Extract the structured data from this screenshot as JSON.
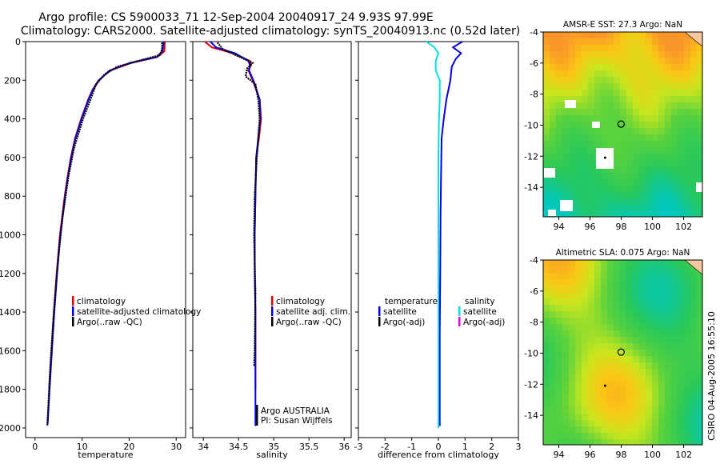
{
  "header": {
    "line1": "Argo profile: CS 5900033_71 12-Sep-2004 20040917_24 9.93S 97.99E",
    "line2": "Climatology: CARS2000. Satellite-adjusted climatology: synTS_20040913.nc (0.52d later)"
  },
  "side_stamp": "CSIRO 04-Aug-2005 16:55:10",
  "chart_data": [
    {
      "type": "line",
      "id": "temperature",
      "xlabel": "temperature",
      "ylabel": "",
      "xlim": [
        -2,
        32
      ],
      "ylim": [
        2050,
        0
      ],
      "xticks": [
        "0",
        "10",
        "20",
        "30"
      ],
      "xtick_values": [
        0,
        10,
        20,
        30
      ],
      "yticks": [
        "0",
        "200",
        "400",
        "600",
        "800",
        "1000",
        "1200",
        "1400",
        "1600",
        "1800",
        "2000"
      ],
      "ytick_values": [
        0,
        200,
        400,
        600,
        800,
        1000,
        1200,
        1400,
        1600,
        1800,
        2000
      ],
      "legend": [
        {
          "label": "climatology",
          "color": "#e00000"
        },
        {
          "label": "satellite-adjusted climatology",
          "color": "#0000e0"
        },
        {
          "label": "Argo(..raw -QC)",
          "color": "#000000"
        }
      ],
      "series": [
        {
          "name": "climatology",
          "color": "#e00000",
          "depth": [
            0,
            50,
            80,
            110,
            150,
            200,
            250,
            300,
            400,
            500,
            600,
            700,
            800,
            1000,
            1200,
            1400,
            1600,
            1800
          ],
          "values": [
            27.6,
            27.5,
            26.0,
            20.5,
            16.0,
            13.5,
            12.2,
            11.3,
            9.8,
            8.5,
            7.6,
            6.9,
            6.3,
            5.3,
            4.6,
            4.0,
            3.5,
            3.0
          ]
        },
        {
          "name": "satellite-adjusted climatology",
          "color": "#0000e0",
          "depth": [
            0,
            50,
            80,
            110,
            150,
            200,
            250,
            300,
            400,
            500,
            600,
            700,
            800,
            1000,
            1200,
            1400,
            1600,
            1800,
            1980
          ],
          "values": [
            27.3,
            27.1,
            25.8,
            20.2,
            15.8,
            13.6,
            12.3,
            11.4,
            9.9,
            8.6,
            7.7,
            7.0,
            6.4,
            5.4,
            4.7,
            4.1,
            3.6,
            3.1,
            2.7
          ]
        },
        {
          "name": "Argo(..raw -QC)",
          "color": "#000000",
          "depth": [
            5,
            40,
            70,
            100,
            130,
            170,
            220,
            300,
            400,
            550,
            700,
            900,
            1100,
            1400,
            1700,
            1990
          ],
          "values": [
            27.0,
            27.0,
            26.5,
            22.0,
            17.5,
            14.8,
            13.0,
            11.8,
            10.2,
            8.3,
            7.1,
            5.9,
            5.0,
            4.0,
            3.2,
            2.6
          ]
        }
      ]
    },
    {
      "type": "line",
      "id": "salinity",
      "xlabel": "salinity",
      "xlim": [
        33.85,
        36.1
      ],
      "ylim": [
        2050,
        0
      ],
      "xticks": [
        "34",
        "34.5",
        "35",
        "35.5",
        "36"
      ],
      "xtick_values": [
        34,
        34.5,
        35,
        35.5,
        36
      ],
      "legend": [
        {
          "label": "climatology",
          "color": "#e00000"
        },
        {
          "label": "satellite adj. clim.",
          "color": "#0000e0"
        },
        {
          "label": "Argo(..raw -QC)",
          "color": "#000000"
        }
      ],
      "annotations": [
        "Argo AUSTRALIA",
        "PI: Susan Wijffels"
      ],
      "series": [
        {
          "name": "climatology",
          "color": "#e00000",
          "depth": [
            0,
            30,
            60,
            100,
            120,
            150,
            200,
            300,
            400,
            500,
            600,
            800,
            1000,
            1200,
            1400,
            1600,
            1800
          ],
          "values": [
            34.02,
            34.12,
            34.42,
            34.66,
            34.68,
            34.64,
            34.7,
            34.8,
            34.82,
            34.79,
            34.75,
            34.74,
            34.73,
            34.73,
            34.74,
            34.74,
            34.74
          ]
        },
        {
          "name": "satellite adj. clim.",
          "color": "#0000e0",
          "depth": [
            0,
            30,
            60,
            100,
            120,
            150,
            200,
            300,
            400,
            500,
            600,
            800,
            1000,
            1200,
            1400,
            1600,
            1800,
            1990
          ],
          "values": [
            34.1,
            34.18,
            34.45,
            34.64,
            34.66,
            34.65,
            34.71,
            34.8,
            34.81,
            34.78,
            34.75,
            34.74,
            34.73,
            34.73,
            34.74,
            34.74,
            34.74,
            34.74
          ]
        },
        {
          "name": "Argo(..raw -QC)",
          "color": "#000000",
          "depth": [
            5,
            40,
            80,
            110,
            140,
            180,
            220,
            300,
            400,
            600,
            800,
            1000,
            1300,
            1600,
            1680
          ],
          "values": [
            34.2,
            34.28,
            34.52,
            34.7,
            34.62,
            34.6,
            34.74,
            34.78,
            34.8,
            34.76,
            34.73,
            34.72,
            34.74,
            34.73,
            34.72
          ]
        }
      ]
    },
    {
      "type": "line",
      "id": "difference",
      "xlabel": "difference from climatology",
      "xlim": [
        -3,
        3
      ],
      "ylim": [
        2050,
        0
      ],
      "xticks": [
        "-3",
        "-2",
        "-1",
        "0",
        "1",
        "2",
        "3"
      ],
      "xtick_values": [
        -3,
        -2,
        -1,
        0,
        1,
        2,
        3
      ],
      "legend_left_title": "temperature",
      "legend_right_title": "salinity",
      "legend_left": [
        {
          "label": "satellite",
          "color": "#0000e0"
        },
        {
          "label": "Argo(-adj)",
          "color": "#000000"
        }
      ],
      "legend_right": [
        {
          "label": "satellite",
          "color": "#00e0e0"
        },
        {
          "label": "Argo(-adj)",
          "color": "#e000e0"
        }
      ],
      "series": [
        {
          "name": "temperature satellite",
          "color": "#0000e0",
          "depth": [
            0,
            30,
            60,
            90,
            130,
            200,
            300,
            400,
            500,
            700,
            900,
            1200,
            1500,
            1800,
            1990
          ],
          "values": [
            0.9,
            0.55,
            0.85,
            0.65,
            0.5,
            0.45,
            0.3,
            0.2,
            0.12,
            0.1,
            0.08,
            0.07,
            0.05,
            0.05,
            0.05
          ]
        },
        {
          "name": "salinity satellite",
          "color": "#00e0e0",
          "depth": [
            0,
            30,
            60,
            100,
            150,
            200,
            300,
            400,
            600,
            800,
            1000,
            1500,
            2000
          ],
          "values": [
            -0.45,
            -0.15,
            0.0,
            -0.1,
            -0.1,
            0.05,
            0.05,
            0.02,
            0.0,
            0.0,
            0.0,
            0.0,
            0.0
          ]
        }
      ]
    },
    {
      "type": "heatmap",
      "id": "sst_map",
      "title": "AMSR-E SST: 27.3 Argo: NaN",
      "xlim": [
        93,
        103.2
      ],
      "ylim": [
        -15.9,
        -4
      ],
      "xticks": [
        "94",
        "96",
        "98",
        "100",
        "102"
      ],
      "xtick_values": [
        94,
        96,
        98,
        100,
        102
      ],
      "yticks": [
        "-4",
        "-6",
        "-8",
        "-10",
        "-12",
        "-14"
      ],
      "ytick_values": [
        -4,
        -6,
        -8,
        -10,
        -12,
        -14
      ],
      "float_position": {
        "lon": 97.99,
        "lat": -9.93
      }
    },
    {
      "type": "heatmap",
      "id": "sla_map",
      "title": "Altimetric SLA: 0.075 Argo: NaN",
      "xlim": [
        93,
        103.2
      ],
      "ylim": [
        -15.9,
        -4
      ],
      "xticks": [
        "94",
        "96",
        "98",
        "100",
        "102"
      ],
      "xtick_values": [
        94,
        96,
        98,
        100,
        102
      ],
      "yticks": [
        "-4",
        "-6",
        "-8",
        "-10",
        "-12",
        "-14"
      ],
      "ytick_values": [
        -4,
        -6,
        -8,
        -10,
        -12,
        -14
      ],
      "float_position": {
        "lon": 97.99,
        "lat": -9.93
      }
    }
  ]
}
